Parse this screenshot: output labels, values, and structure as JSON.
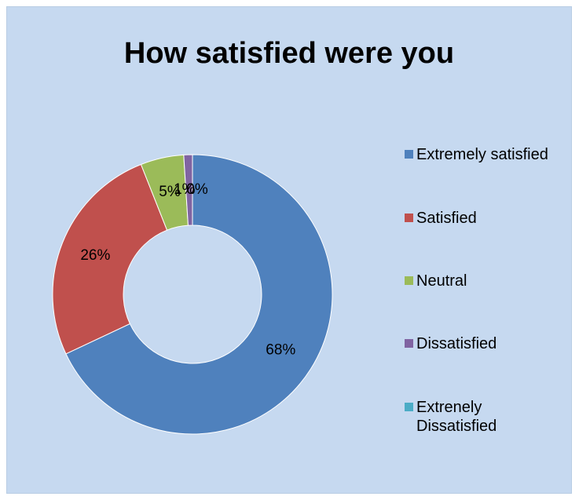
{
  "chart_data": {
    "type": "pie",
    "variant": "donut",
    "title": "How satisfied were you",
    "categories": [
      "Extremely satisfied",
      "Satisfied",
      "Neutral",
      "Dissatisfied",
      "Extrenely Dissatisfied"
    ],
    "values": [
      68,
      26,
      5,
      1,
      0
    ],
    "data_labels": [
      "68%",
      "26%",
      "5%",
      "1%",
      "0%"
    ],
    "colors": [
      "#4f81bd",
      "#c0504d",
      "#9bbb59",
      "#8064a2",
      "#4bacc6"
    ],
    "legend_position": "right",
    "background": "#c6d9f0"
  },
  "legend": {
    "items": [
      {
        "label": "Extremely satisfied"
      },
      {
        "label": "Satisfied"
      },
      {
        "label": "Neutral"
      },
      {
        "label": "Dissatisfied"
      },
      {
        "label": "Extrenely\nDissatisfied"
      }
    ]
  }
}
